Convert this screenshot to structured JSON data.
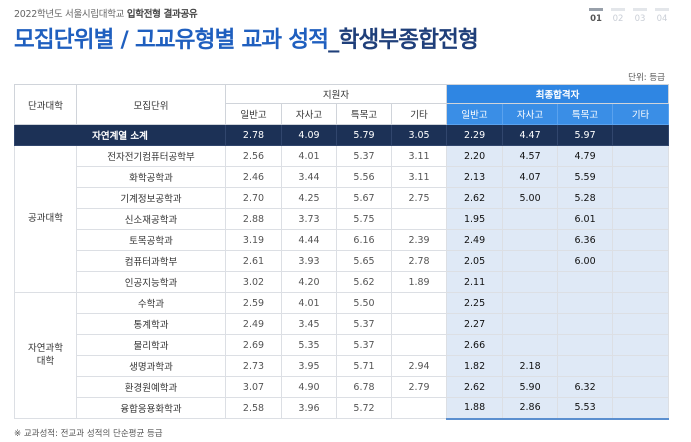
{
  "header": {
    "topline_prefix": "2022학년도 서울시립대학교",
    "topline_bold": "입학전형 결과공유",
    "title_main": "모집단위별 / 고교유형별 교과 성적",
    "title_sub": "학생부종합전형"
  },
  "pager": [
    "01",
    "02",
    "03",
    "04"
  ],
  "unit_label": "단위: 등급",
  "table": {
    "col_college": "단과대학",
    "col_unit": "모집단위",
    "group_applicants": "지원자",
    "group_final": "최종합격자",
    "sub_headers": [
      "일반고",
      "자사고",
      "특목고",
      "기타"
    ],
    "summary": {
      "label": "자연계열 소계",
      "applicants": [
        "2.78",
        "4.09",
        "5.79",
        "3.05"
      ],
      "final": [
        "2.29",
        "4.47",
        "5.97",
        ""
      ]
    },
    "groups": [
      {
        "college": "공과대학",
        "rows": [
          {
            "name": "전자전기컴퓨터공학부",
            "app": [
              "2.56",
              "4.01",
              "5.37",
              "3.11"
            ],
            "fin": [
              "2.20",
              "4.57",
              "4.79",
              ""
            ]
          },
          {
            "name": "화학공학과",
            "app": [
              "2.46",
              "3.44",
              "5.56",
              "3.11"
            ],
            "fin": [
              "2.13",
              "4.07",
              "5.59",
              ""
            ]
          },
          {
            "name": "기계정보공학과",
            "app": [
              "2.70",
              "4.25",
              "5.67",
              "2.75"
            ],
            "fin": [
              "2.62",
              "5.00",
              "5.28",
              ""
            ]
          },
          {
            "name": "신소재공학과",
            "app": [
              "2.88",
              "3.73",
              "5.75",
              ""
            ],
            "fin": [
              "1.95",
              "",
              "6.01",
              ""
            ]
          },
          {
            "name": "토목공학과",
            "app": [
              "3.19",
              "4.44",
              "6.16",
              "2.39"
            ],
            "fin": [
              "2.49",
              "",
              "6.36",
              ""
            ]
          },
          {
            "name": "컴퓨터과학부",
            "app": [
              "2.61",
              "3.93",
              "5.65",
              "2.78"
            ],
            "fin": [
              "2.05",
              "",
              "6.00",
              ""
            ]
          },
          {
            "name": "인공지능학과",
            "app": [
              "3.02",
              "4.20",
              "5.62",
              "1.89"
            ],
            "fin": [
              "2.11",
              "",
              "",
              ""
            ]
          }
        ]
      },
      {
        "college": "자연과학대학",
        "college_line1": "자연과학",
        "college_line2": "대학",
        "rows": [
          {
            "name": "수학과",
            "app": [
              "2.59",
              "4.01",
              "5.50",
              ""
            ],
            "fin": [
              "2.25",
              "",
              "",
              ""
            ]
          },
          {
            "name": "통계학과",
            "app": [
              "2.49",
              "3.45",
              "5.37",
              ""
            ],
            "fin": [
              "2.27",
              "",
              "",
              ""
            ]
          },
          {
            "name": "물리학과",
            "app": [
              "2.69",
              "5.35",
              "5.37",
              ""
            ],
            "fin": [
              "2.66",
              "",
              "",
              ""
            ]
          },
          {
            "name": "생명과학과",
            "app": [
              "2.73",
              "3.95",
              "5.71",
              "2.94"
            ],
            "fin": [
              "1.82",
              "2.18",
              "",
              ""
            ]
          },
          {
            "name": "환경원예학과",
            "app": [
              "3.07",
              "4.90",
              "6.78",
              "2.79"
            ],
            "fin": [
              "2.62",
              "5.90",
              "6.32",
              ""
            ]
          },
          {
            "name": "융합응용화학과",
            "app": [
              "2.58",
              "3.96",
              "5.72",
              ""
            ],
            "fin": [
              "1.88",
              "2.86",
              "5.53",
              ""
            ]
          }
        ]
      }
    ]
  },
  "footnote": "※ 교과성적: 전교과 성적의 단순평균 등급",
  "colors": {
    "title_blue": "#1f5fbf",
    "header_blue": "#3a8ee6",
    "summary_navy": "#1c3156",
    "final_highlight": "#dfe9f6"
  }
}
